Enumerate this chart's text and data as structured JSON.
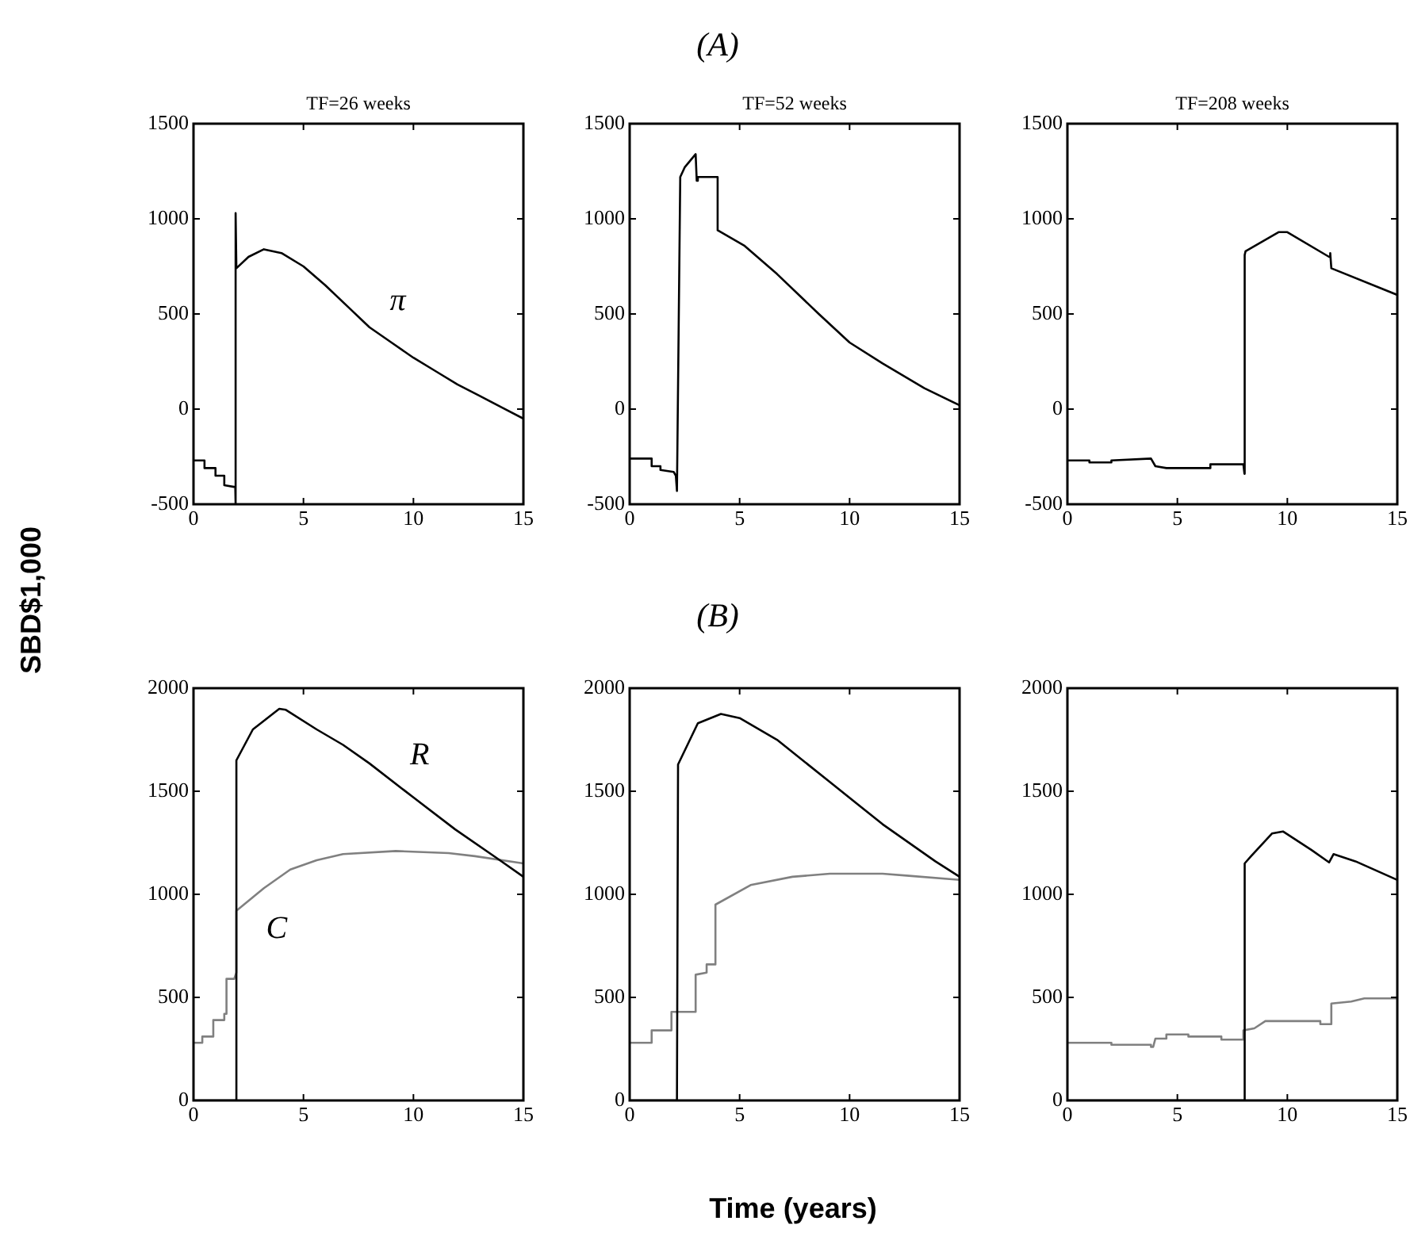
{
  "chart_data": [
    {
      "type": "line",
      "title": "TF=26 weeks",
      "ylabel": "SBD$1,000",
      "annotations": [
        "(A)"
      ],
      "xlim": [
        0,
        15
      ],
      "xticks": [
        0,
        5,
        10,
        15
      ],
      "ylim": [
        -500,
        1500
      ],
      "yticks": [
        -500,
        0,
        500,
        1000,
        1500
      ],
      "grid": false,
      "legend": false,
      "series": [
        {
          "name": "π",
          "color": "#000000",
          "x": [
            0,
            0.5,
            0.5,
            1.0,
            1.0,
            1.4,
            1.4,
            1.9,
            1.9,
            1.93,
            1.95,
            2.5,
            3.2,
            4,
            5,
            6,
            7,
            8,
            9,
            10,
            11,
            12,
            13,
            14,
            15
          ],
          "values": [
            -270,
            -270,
            -310,
            -310,
            -350,
            -350,
            -400,
            -410,
            -500,
            1030,
            740,
            800,
            840,
            820,
            750,
            650,
            540,
            430,
            350,
            270,
            200,
            130,
            70,
            10,
            -50
          ]
        }
      ]
    },
    {
      "type": "line",
      "title": "TF=52 weeks",
      "xlim": [
        0,
        15
      ],
      "xticks": [
        0,
        5,
        10,
        15
      ],
      "ylim": [
        -500,
        1500
      ],
      "yticks": [
        -500,
        0,
        500,
        1000,
        1500
      ],
      "grid": false,
      "legend": false,
      "series": [
        {
          "color": "#000000",
          "x": [
            0,
            1.0,
            1.0,
            1.4,
            1.4,
            2.0,
            2.1,
            2.15,
            2.3,
            2.5,
            3.0,
            3.05,
            3.1,
            4.0,
            4.0,
            5.2,
            6.7,
            8.6,
            10.0,
            11.5,
            13.4,
            15
          ],
          "values": [
            -260,
            -260,
            -300,
            -300,
            -320,
            -330,
            -350,
            -430,
            1220,
            1270,
            1340,
            1200,
            1220,
            1220,
            940,
            860,
            710,
            500,
            350,
            240,
            110,
            20
          ]
        }
      ]
    },
    {
      "type": "line",
      "title": "TF=208 weeks",
      "xlim": [
        0,
        15
      ],
      "xticks": [
        0,
        5,
        10,
        15
      ],
      "ylim": [
        -500,
        1500
      ],
      "yticks": [
        -500,
        0,
        500,
        1000,
        1500
      ],
      "grid": false,
      "legend": false,
      "series": [
        {
          "color": "#000000",
          "x": [
            0,
            1.0,
            1.0,
            2.0,
            2.0,
            3.8,
            4.0,
            4.5,
            6.5,
            6.5,
            8.0,
            8.05,
            8.06,
            8.1,
            9.6,
            10.0,
            11.9,
            11.95,
            12.0,
            15
          ],
          "values": [
            -270,
            -270,
            -280,
            -280,
            -270,
            -260,
            -300,
            -310,
            -310,
            -290,
            -290,
            -340,
            810,
            830,
            930,
            930,
            800,
            820,
            740,
            600
          ]
        }
      ]
    },
    {
      "type": "line",
      "annotations": [
        "(B)"
      ],
      "xlim": [
        0,
        15
      ],
      "xticks": [
        0,
        5,
        10,
        15
      ],
      "ylim": [
        0,
        2000
      ],
      "yticks": [
        0,
        500,
        1000,
        1500,
        2000
      ],
      "grid": false,
      "legend": false,
      "series": [
        {
          "name": "R",
          "color": "#000000",
          "x": [
            0,
            1.95,
            1.95,
            2.7,
            3.9,
            4.2,
            5.6,
            6.8,
            8.0,
            10,
            11.9,
            13.8,
            15
          ],
          "values": [
            0,
            0,
            1650,
            1800,
            1900,
            1895,
            1800,
            1725,
            1635,
            1470,
            1315,
            1175,
            1085
          ]
        },
        {
          "name": "C",
          "color": "#808080",
          "x": [
            0,
            0.4,
            0.4,
            0.9,
            0.9,
            1.4,
            1.4,
            1.5,
            1.5,
            1.85,
            1.95,
            1.95,
            3.2,
            4.4,
            5.6,
            6.8,
            9.2,
            11.6,
            12.8,
            15
          ],
          "values": [
            280,
            280,
            310,
            310,
            390,
            390,
            420,
            420,
            590,
            590,
            620,
            920,
            1030,
            1120,
            1165,
            1195,
            1210,
            1200,
            1185,
            1150
          ]
        }
      ]
    },
    {
      "type": "line",
      "xlabel": "Time (years)",
      "xlim": [
        0,
        15
      ],
      "xticks": [
        0,
        5,
        10,
        15
      ],
      "ylim": [
        0,
        2000
      ],
      "yticks": [
        0,
        500,
        1000,
        1500,
        2000
      ],
      "grid": false,
      "legend": false,
      "series": [
        {
          "color": "#000000",
          "x": [
            0,
            2.15,
            2.2,
            3.1,
            4.15,
            5,
            6.7,
            9.1,
            11.5,
            13.9,
            15
          ],
          "values": [
            0,
            0,
            1630,
            1830,
            1875,
            1855,
            1750,
            1545,
            1340,
            1160,
            1085
          ]
        },
        {
          "color": "#808080",
          "x": [
            0,
            1.0,
            1.0,
            1.9,
            1.9,
            3.0,
            3.0,
            3.5,
            3.5,
            3.9,
            3.9,
            5.5,
            7.4,
            9.1,
            11.5,
            12.7,
            15
          ],
          "values": [
            280,
            280,
            340,
            340,
            430,
            430,
            610,
            620,
            660,
            660,
            950,
            1045,
            1085,
            1100,
            1100,
            1090,
            1070
          ]
        }
      ]
    },
    {
      "type": "line",
      "xlim": [
        0,
        15
      ],
      "xticks": [
        0,
        5,
        10,
        15
      ],
      "ylim": [
        0,
        2000
      ],
      "yticks": [
        0,
        500,
        1000,
        1500,
        2000
      ],
      "grid": false,
      "legend": false,
      "series": [
        {
          "color": "#000000",
          "x": [
            0,
            8.06,
            8.06,
            8.35,
            9.3,
            9.8,
            11.1,
            11.9,
            12.1,
            13.1,
            15
          ],
          "values": [
            0,
            0,
            1150,
            1185,
            1295,
            1305,
            1215,
            1155,
            1195,
            1160,
            1070
          ]
        },
        {
          "color": "#808080",
          "x": [
            0,
            2.0,
            2.0,
            3.8,
            3.8,
            3.9,
            4.0,
            4.5,
            4.5,
            5.5,
            5.5,
            7.0,
            7.0,
            8.0,
            8.0,
            8.5,
            9.0,
            11.5,
            11.5,
            12.0,
            12.0,
            12.9,
            13.5,
            15
          ],
          "values": [
            280,
            280,
            270,
            270,
            260,
            260,
            300,
            300,
            320,
            320,
            310,
            310,
            295,
            295,
            340,
            350,
            385,
            385,
            370,
            370,
            470,
            480,
            495,
            495
          ]
        }
      ]
    }
  ]
}
